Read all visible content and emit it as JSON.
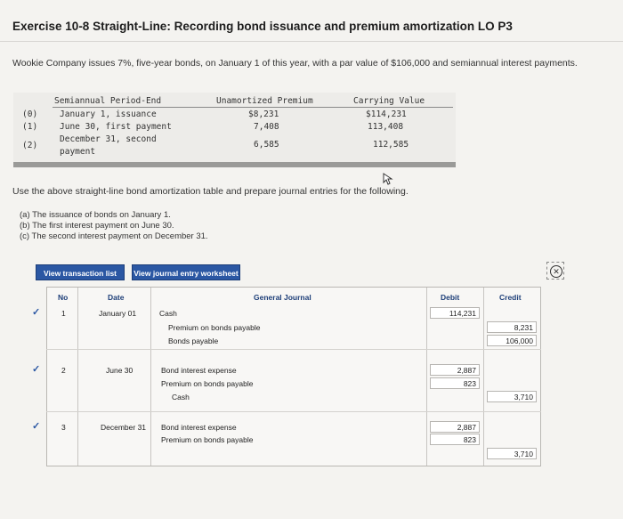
{
  "title": "Exercise 10-8 Straight-Line: Recording bond issuance and premium amortization LO P3",
  "intro": "Wookie Company issues 7%, five-year bonds, on January 1 of this year, with a par value of $106,000 and semiannual interest payments.",
  "amort_table": {
    "headers": {
      "period": "Semiannual Period-End",
      "premium": "Unamortized Premium",
      "carrying": "Carrying Value"
    },
    "rows": [
      {
        "no": "(0)",
        "period": "January 1, issuance",
        "period2": "",
        "premium": "$8,231",
        "carrying": "$114,231"
      },
      {
        "no": "(1)",
        "period": "June 30, first payment",
        "period2": "",
        "premium": "7,408",
        "carrying": "113,408"
      },
      {
        "no": "(2)",
        "period": "December 31, second",
        "period2": "payment",
        "premium": "6,585",
        "carrying": "112,585"
      }
    ]
  },
  "prompt": "Use the above straight-line bond amortization table and prepare journal entries for the following.",
  "parts": [
    "(a) The issuance of bonds on January 1.",
    "(b) The first interest payment on June 30.",
    "(c) The second interest payment on December 31."
  ],
  "buttons": {
    "transactions": "View transaction list",
    "worksheet": "View journal entry worksheet",
    "close_glyph": "✕"
  },
  "journal": {
    "headers": {
      "no": "No",
      "date": "Date",
      "general": "General Journal",
      "debit": "Debit",
      "credit": "Credit"
    },
    "entries": [
      {
        "no": "1",
        "date": "January 01",
        "lines": [
          {
            "account": "Cash",
            "debit": "114,231",
            "credit": ""
          },
          {
            "account": "Premium on bonds payable",
            "debit": "",
            "credit": "8,231"
          },
          {
            "account": "Bonds payable",
            "debit": "",
            "credit": "106,000"
          }
        ]
      },
      {
        "no": "2",
        "date": "June 30",
        "lines": [
          {
            "account": "Bond interest expense",
            "debit": "2,887",
            "credit": ""
          },
          {
            "account": "Premium on bonds payable",
            "debit": "823",
            "credit": ""
          },
          {
            "account": "Cash",
            "debit": "",
            "credit": "3,710"
          }
        ]
      },
      {
        "no": "3",
        "date": "December 31",
        "lines": [
          {
            "account": "Bond interest expense",
            "debit": "2,887",
            "credit": ""
          },
          {
            "account": "Premium on bonds payable",
            "debit": "823",
            "credit": ""
          },
          {
            "account": "",
            "debit": "",
            "credit": "3,710"
          }
        ]
      }
    ]
  },
  "icons": {
    "edit": "pencil-icon",
    "close": "close-circle-icon",
    "cursor": "mouse-cursor-icon"
  }
}
